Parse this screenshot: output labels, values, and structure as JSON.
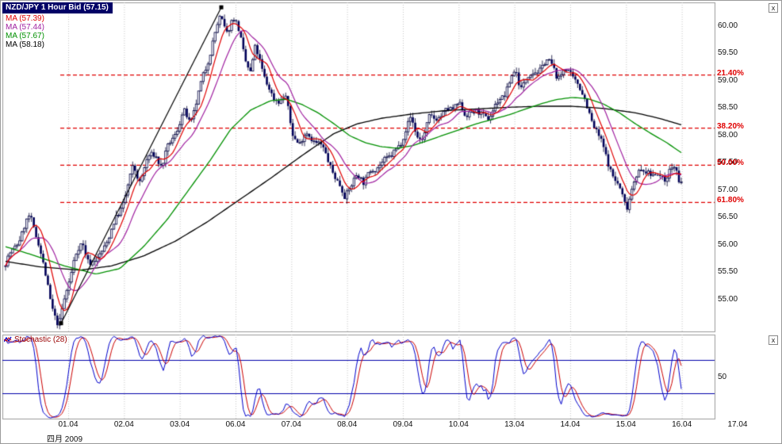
{
  "legend": {
    "title": "NZD/JPY 1 Hour Bid (57.15)",
    "mas": [
      {
        "label": "MA (57.39)",
        "color": "#e00000"
      },
      {
        "label": "MA (57.44)",
        "color": "#a020a0"
      },
      {
        "label": "MA (57.67)",
        "color": "#009000"
      },
      {
        "label": "MA (58.18)",
        "color": "#000000"
      }
    ]
  },
  "stochastic_panel": {
    "label": "Stochastic (28)",
    "label_color": "#990000",
    "axis_label": "50",
    "upper_level": 70,
    "lower_level": 30
  },
  "close_button": "x",
  "x_axis": {
    "labels": [
      "01.04",
      "02.04",
      "03.04",
      "06.04",
      "07.04",
      "08.04",
      "09.04",
      "10.04",
      "13.04",
      "14.04",
      "15.04",
      "16.04",
      "17.04"
    ],
    "month_label": "四月 2009"
  },
  "y_axis": {
    "ticks": [
      "60.00",
      "59.50",
      "59.00",
      "58.50",
      "58.00",
      "57.50",
      "57.00",
      "56.50",
      "56.00",
      "55.50",
      "55.00"
    ]
  },
  "fibonacci": [
    {
      "label": "21.40%",
      "price": 59.09
    },
    {
      "label": "38.20%",
      "price": 58.12
    },
    {
      "label": "50.00%",
      "price": 57.44
    },
    {
      "label": "61.80%",
      "price": 56.76
    }
  ],
  "colors": {
    "background": "#ffffff",
    "panel_border": "#9a9a9a",
    "grid": "#c6c6c6",
    "candle_down_fill": "#000058",
    "candle_up_fill": "#ffffff",
    "candle_outline": "#000040",
    "fib_line": "#e00000",
    "trend_line": "#000000",
    "stoch_k": "#0000cc",
    "stoch_d": "#cc0000",
    "stoch_level_line": "#0000aa",
    "title_bg": "#000066",
    "title_text": "#ffffff"
  },
  "chart_data": {
    "type": "candlestick",
    "instrument": "NZD/JPY",
    "timeframe": "1 Hour Bid",
    "last_price": 57.15,
    "bars": 288,
    "ylim": [
      54.4,
      60.42
    ],
    "stochastic": {
      "period": 28
    },
    "trend_line": {
      "from": [
        76,
        54.55
      ],
      "to": [
        278,
        60.33
      ]
    },
    "price_path": [
      [
        6,
        55.6
      ],
      [
        18,
        55.8
      ],
      [
        30,
        56.12
      ],
      [
        40,
        56.45
      ],
      [
        50,
        56.1
      ],
      [
        58,
        55.55
      ],
      [
        66,
        55.05
      ],
      [
        76,
        54.55
      ],
      [
        86,
        55.15
      ],
      [
        96,
        55.7
      ],
      [
        106,
        55.9
      ],
      [
        114,
        55.62
      ],
      [
        124,
        55.65
      ],
      [
        134,
        56.05
      ],
      [
        146,
        56.45
      ],
      [
        158,
        56.85
      ],
      [
        170,
        57.35
      ],
      [
        178,
        57.08
      ],
      [
        188,
        57.45
      ],
      [
        198,
        57.62
      ],
      [
        206,
        57.42
      ],
      [
        216,
        57.92
      ],
      [
        226,
        58.22
      ],
      [
        234,
        58.45
      ],
      [
        242,
        58.22
      ],
      [
        252,
        58.65
      ],
      [
        262,
        59.15
      ],
      [
        272,
        59.75
      ],
      [
        280,
        60.12
      ],
      [
        288,
        59.95
      ],
      [
        296,
        60.22
      ],
      [
        304,
        59.95
      ],
      [
        312,
        59.42
      ],
      [
        318,
        59.12
      ],
      [
        324,
        59.55
      ],
      [
        330,
        59.3
      ],
      [
        338,
        58.85
      ],
      [
        346,
        58.55
      ],
      [
        354,
        58.62
      ],
      [
        362,
        58.72
      ],
      [
        370,
        58.1
      ],
      [
        380,
        57.95
      ],
      [
        388,
        58.06
      ],
      [
        396,
        57.95
      ],
      [
        404,
        57.8
      ],
      [
        412,
        57.55
      ],
      [
        420,
        57.32
      ],
      [
        428,
        57.05
      ],
      [
        436,
        56.85
      ],
      [
        444,
        57.15
      ],
      [
        452,
        57.32
      ],
      [
        460,
        57.22
      ],
      [
        468,
        57.42
      ],
      [
        476,
        57.3
      ],
      [
        486,
        57.52
      ],
      [
        496,
        57.48
      ],
      [
        504,
        57.72
      ],
      [
        512,
        58.02
      ],
      [
        520,
        58.32
      ],
      [
        528,
        58.08
      ],
      [
        536,
        58.02
      ],
      [
        544,
        58.38
      ],
      [
        552,
        58.35
      ],
      [
        560,
        58.28
      ],
      [
        570,
        58.4
      ],
      [
        580,
        58.5
      ],
      [
        588,
        58.3
      ],
      [
        598,
        58.52
      ],
      [
        608,
        58.42
      ],
      [
        618,
        58.42
      ],
      [
        628,
        58.55
      ],
      [
        638,
        58.7
      ],
      [
        646,
        58.95
      ],
      [
        652,
        59.05
      ],
      [
        658,
        58.78
      ],
      [
        666,
        59.05
      ],
      [
        674,
        59.12
      ],
      [
        682,
        59.28
      ],
      [
        690,
        59.45
      ],
      [
        698,
        59.32
      ],
      [
        706,
        59.08
      ],
      [
        714,
        59.15
      ],
      [
        722,
        59.0
      ],
      [
        730,
        58.9
      ],
      [
        738,
        58.58
      ],
      [
        746,
        58.35
      ],
      [
        754,
        58.12
      ],
      [
        762,
        57.85
      ],
      [
        770,
        57.55
      ],
      [
        778,
        57.2
      ],
      [
        786,
        56.9
      ],
      [
        792,
        56.65
      ],
      [
        800,
        57.0
      ],
      [
        808,
        57.22
      ],
      [
        816,
        57.32
      ],
      [
        824,
        57.2
      ],
      [
        832,
        57.35
      ],
      [
        840,
        57.28
      ],
      [
        848,
        57.42
      ],
      [
        854,
        57.48
      ],
      [
        858,
        57.18
      ]
    ],
    "ma_green_path": [
      [
        6,
        55.95
      ],
      [
        40,
        55.8
      ],
      [
        80,
        55.6
      ],
      [
        120,
        55.45
      ],
      [
        150,
        55.55
      ],
      [
        180,
        55.95
      ],
      [
        210,
        56.45
      ],
      [
        240,
        57.05
      ],
      [
        265,
        57.55
      ],
      [
        290,
        58.1
      ],
      [
        315,
        58.45
      ],
      [
        340,
        58.62
      ],
      [
        360,
        58.65
      ],
      [
        380,
        58.55
      ],
      [
        400,
        58.4
      ],
      [
        420,
        58.2
      ],
      [
        440,
        57.98
      ],
      [
        460,
        57.85
      ],
      [
        480,
        57.78
      ],
      [
        500,
        57.75
      ],
      [
        520,
        57.8
      ],
      [
        540,
        57.9
      ],
      [
        560,
        58.0
      ],
      [
        580,
        58.1
      ],
      [
        600,
        58.2
      ],
      [
        620,
        58.28
      ],
      [
        640,
        58.36
      ],
      [
        660,
        58.46
      ],
      [
        680,
        58.56
      ],
      [
        700,
        58.64
      ],
      [
        720,
        58.68
      ],
      [
        740,
        58.66
      ],
      [
        760,
        58.56
      ],
      [
        780,
        58.4
      ],
      [
        800,
        58.2
      ],
      [
        820,
        58.02
      ],
      [
        840,
        57.85
      ],
      [
        858,
        57.67
      ]
    ],
    "ma_black_path": [
      [
        6,
        55.68
      ],
      [
        50,
        55.58
      ],
      [
        100,
        55.52
      ],
      [
        140,
        55.6
      ],
      [
        180,
        55.78
      ],
      [
        220,
        56.05
      ],
      [
        260,
        56.4
      ],
      [
        300,
        56.8
      ],
      [
        340,
        57.2
      ],
      [
        380,
        57.62
      ],
      [
        420,
        58.02
      ],
      [
        450,
        58.2
      ],
      [
        480,
        58.3
      ],
      [
        520,
        58.38
      ],
      [
        560,
        58.44
      ],
      [
        600,
        58.47
      ],
      [
        640,
        58.5
      ],
      [
        680,
        58.52
      ],
      [
        720,
        58.52
      ],
      [
        760,
        58.48
      ],
      [
        800,
        58.4
      ],
      [
        830,
        58.3
      ],
      [
        858,
        58.18
      ]
    ]
  }
}
